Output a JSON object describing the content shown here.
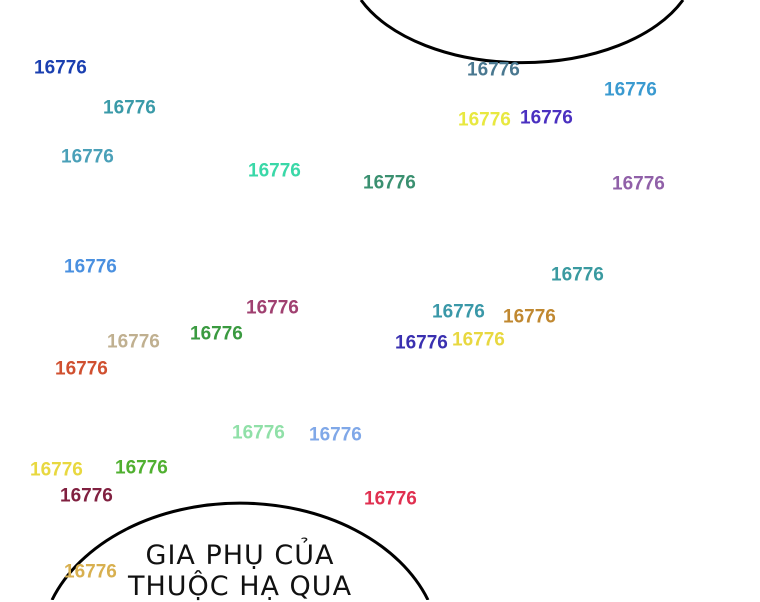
{
  "speech_bubble": {
    "lines": [
      "GIA PHỤ CỦA",
      "THUỘC HẠ QUA"
    ]
  },
  "watermarks": [
    {
      "text": "16776",
      "color": "#1a3fb0"
    },
    {
      "text": "16776",
      "color": "#3a9aa8"
    },
    {
      "text": "16776",
      "color": "#4aa0b8"
    },
    {
      "text": "16776",
      "color": "#3ad8a8"
    },
    {
      "text": "16776",
      "color": "#3a9070"
    },
    {
      "text": "16776",
      "color": "#4a7890"
    },
    {
      "text": "16776",
      "color": "#3a9ad0"
    },
    {
      "text": "16776",
      "color": "#e8e840"
    },
    {
      "text": "16776",
      "color": "#4a30c0"
    },
    {
      "text": "16776",
      "color": "#9060a8"
    },
    {
      "text": "16776",
      "color": "#4a90e0"
    },
    {
      "text": "16776",
      "color": "#3a9aa0"
    },
    {
      "text": "16776",
      "color": "#a04070"
    },
    {
      "text": "16776",
      "color": "#3a98a8"
    },
    {
      "text": "16776",
      "color": "#c08830"
    },
    {
      "text": "16776",
      "color": "#e8d840"
    },
    {
      "text": "16776",
      "color": "#3a30b0"
    },
    {
      "text": "16776",
      "color": "#3a9a40"
    },
    {
      "text": "16776",
      "color": "#c0b090"
    },
    {
      "text": "16776",
      "color": "#d05030"
    },
    {
      "text": "16776",
      "color": "#90e0a8"
    },
    {
      "text": "16776",
      "color": "#80a8e8"
    },
    {
      "text": "16776",
      "color": "#50b030"
    },
    {
      "text": "16776",
      "color": "#e8d840"
    },
    {
      "text": "16776",
      "color": "#802040"
    },
    {
      "text": "16776",
      "color": "#e03050"
    },
    {
      "text": "16776",
      "color": "#d8b050"
    }
  ]
}
